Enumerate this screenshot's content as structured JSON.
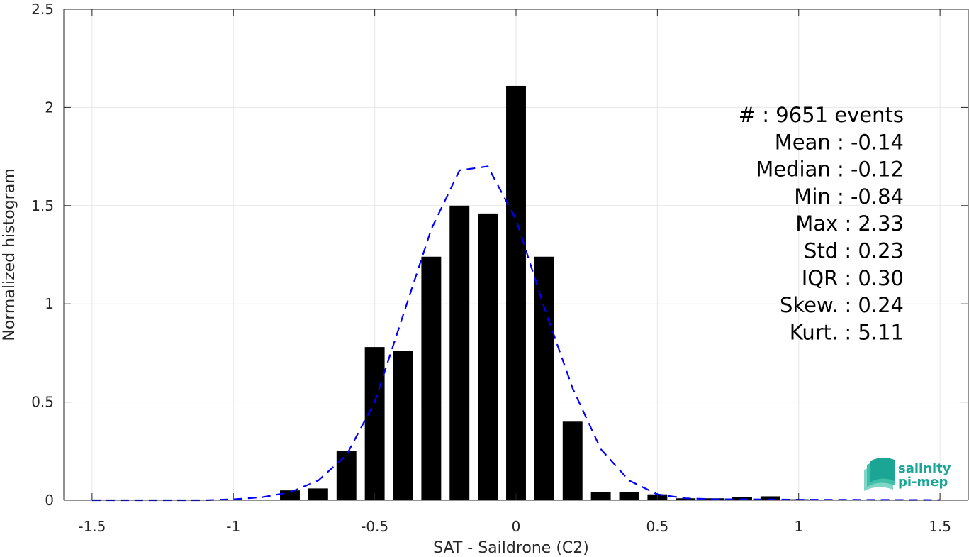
{
  "chart_data": {
    "type": "bar",
    "xlabel": "SAT - Saildrone (C2)",
    "ylabel": "Normalized histogram",
    "xlim": [
      -1.6,
      1.6
    ],
    "ylim": [
      0,
      2.5
    ],
    "xticks": [
      -1.5,
      -1,
      -0.5,
      0,
      0.5,
      1,
      1.5
    ],
    "xtick_labels": [
      "-1.5",
      "-1",
      "-0.5",
      "0",
      "0.5",
      "1",
      "1.5"
    ],
    "yticks": [
      0,
      0.5,
      1,
      1.5,
      2,
      2.5
    ],
    "ytick_labels": [
      "0",
      "0.5",
      "1",
      "1.5",
      "2",
      "2.5"
    ],
    "grid": true,
    "bar_color": "#000000",
    "fit_color": "#0000ff",
    "bars": {
      "x": [
        -0.8,
        -0.7,
        -0.6,
        -0.5,
        -0.4,
        -0.3,
        -0.2,
        -0.1,
        0.0,
        0.1,
        0.2,
        0.3,
        0.4,
        0.5,
        0.6,
        0.7,
        0.8,
        0.9,
        1.0,
        1.1,
        1.2,
        1.3,
        1.4,
        1.5
      ],
      "values": [
        0.05,
        0.06,
        0.25,
        0.78,
        0.76,
        1.24,
        1.5,
        1.46,
        2.11,
        1.24,
        0.4,
        0.04,
        0.04,
        0.03,
        0.01,
        0.01,
        0.015,
        0.02,
        0.005,
        0.003,
        0.003,
        0.002,
        0.002,
        0.002
      ]
    },
    "fit_curve": {
      "style": "dashed",
      "x": [
        -1.5,
        -1.3,
        -1.1,
        -1.0,
        -0.9,
        -0.8,
        -0.7,
        -0.6,
        -0.5,
        -0.4,
        -0.3,
        -0.2,
        -0.1,
        0.0,
        0.1,
        0.2,
        0.3,
        0.4,
        0.5,
        0.6,
        0.7,
        0.8,
        1.0,
        1.2,
        1.5
      ],
      "y": [
        0.0,
        0.0,
        0.0,
        0.005,
        0.015,
        0.04,
        0.1,
        0.23,
        0.5,
        0.94,
        1.38,
        1.68,
        1.7,
        1.43,
        0.98,
        0.57,
        0.26,
        0.1,
        0.03,
        0.01,
        0.005,
        0.005,
        0.003,
        0.002,
        0.001
      ]
    }
  },
  "stats": [
    "#  : 9651 events",
    "Mean : -0.14",
    "Median : -0.12",
    "Min : -0.84",
    "Max : 2.33",
    "Std : 0.23",
    "IQR : 0.30",
    "Skew. : 0.24",
    "Kurt. : 5.11"
  ],
  "logo": {
    "line1": "salinity",
    "line2": "pi-mep",
    "color": "#1aa595"
  }
}
